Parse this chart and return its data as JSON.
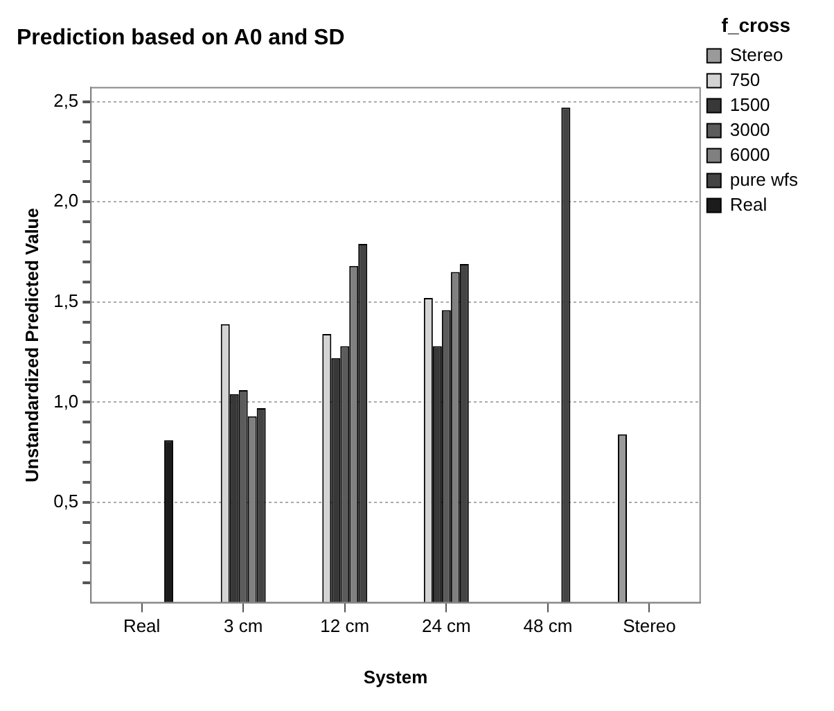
{
  "chart_data": {
    "type": "bar",
    "title": "Prediction based on A0 and SD",
    "xlabel": "System",
    "ylabel": "Unstandardized Predicted Value",
    "legend_title": "f_cross",
    "categories": [
      "Real",
      "3 cm",
      "12 cm",
      "24 cm",
      "48 cm",
      "Stereo"
    ],
    "series": [
      {
        "name": "Stereo",
        "color": "#9a9a9a",
        "values": [
          null,
          null,
          null,
          null,
          null,
          0.84
        ]
      },
      {
        "name": "750",
        "color": "#d4d4d4",
        "values": [
          null,
          1.39,
          1.34,
          1.52,
          null,
          null
        ]
      },
      {
        "name": "1500",
        "color": "#383838",
        "values": [
          null,
          1.04,
          1.22,
          1.28,
          null,
          null
        ]
      },
      {
        "name": "3000",
        "color": "#5c5c5c",
        "values": [
          null,
          1.06,
          1.28,
          1.46,
          null,
          null
        ]
      },
      {
        "name": "6000",
        "color": "#808080",
        "values": [
          null,
          0.93,
          1.68,
          1.65,
          null,
          null
        ]
      },
      {
        "name": "pure wfs",
        "color": "#444444",
        "values": [
          null,
          0.97,
          1.79,
          1.69,
          2.47,
          null
        ]
      },
      {
        "name": "Real",
        "color": "#1c1c1c",
        "values": [
          0.81,
          null,
          null,
          null,
          null,
          null
        ]
      }
    ],
    "ylim": [
      0,
      2.57
    ],
    "yticks": [
      {
        "value": 0.1,
        "label": null
      },
      {
        "value": 0.2,
        "label": null
      },
      {
        "value": 0.3,
        "label": null
      },
      {
        "value": 0.4,
        "label": null
      },
      {
        "value": 0.5,
        "label": "0,5"
      },
      {
        "value": 0.6,
        "label": null
      },
      {
        "value": 0.7,
        "label": null
      },
      {
        "value": 0.8,
        "label": null
      },
      {
        "value": 0.9,
        "label": null
      },
      {
        "value": 1.0,
        "label": "1,0"
      },
      {
        "value": 1.1,
        "label": null
      },
      {
        "value": 1.2,
        "label": null
      },
      {
        "value": 1.3,
        "label": null
      },
      {
        "value": 1.4,
        "label": null
      },
      {
        "value": 1.5,
        "label": "1,5"
      },
      {
        "value": 1.6,
        "label": null
      },
      {
        "value": 1.7,
        "label": null
      },
      {
        "value": 1.8,
        "label": null
      },
      {
        "value": 1.9,
        "label": null
      },
      {
        "value": 2.0,
        "label": "2,0"
      },
      {
        "value": 2.1,
        "label": null
      },
      {
        "value": 2.2,
        "label": null
      },
      {
        "value": 2.3,
        "label": null
      },
      {
        "value": 2.4,
        "label": null
      },
      {
        "value": 2.5,
        "label": "2,5"
      }
    ],
    "grid": "y",
    "legend": "top right"
  }
}
